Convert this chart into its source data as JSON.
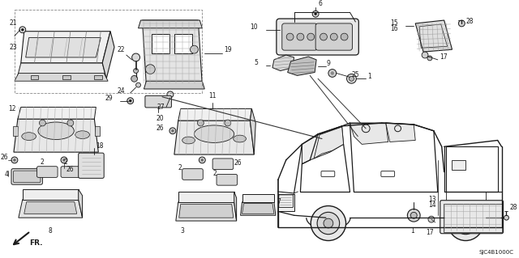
{
  "bg_color": "#ffffff",
  "diagram_code": "SJC4B1000C",
  "figsize": [
    6.4,
    3.19
  ],
  "dpi": 100,
  "lc": "#1a1a1a",
  "fs_label": 5.5,
  "fs_code": 5.0
}
